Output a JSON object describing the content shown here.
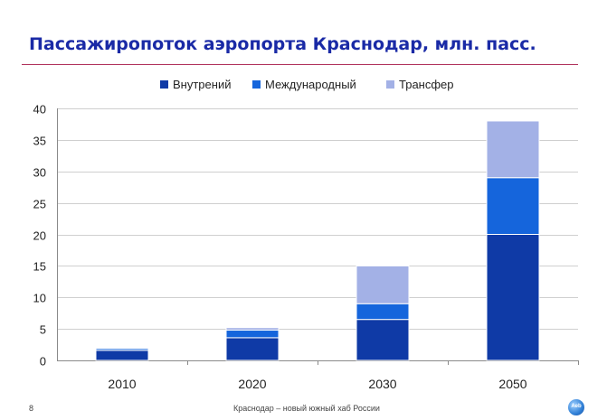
{
  "slide": {
    "title": "Пассажиропоток аэропорта Краснодар, млн. пасс.",
    "page_number": "8",
    "footer": "Краснодар – новый южный хаб России",
    "logo_text": "Aeb"
  },
  "chart_data": {
    "type": "bar",
    "stacked": true,
    "title": "",
    "xlabel": "",
    "ylabel": "",
    "categories": [
      "2010",
      "2020",
      "2030",
      "2050"
    ],
    "series": [
      {
        "name": "Внутрений",
        "values": [
          1.6,
          3.6,
          6.5,
          20
        ],
        "color": "#0f3aa6"
      },
      {
        "name": "Международный",
        "values": [
          0.3,
          1.2,
          2.5,
          9
        ],
        "color": "#1565dc"
      },
      {
        "name": "Трансфер",
        "values": [
          0.1,
          0.4,
          6,
          9
        ],
        "color": "#a3b1e6"
      }
    ],
    "ylim": [
      0,
      40
    ],
    "yticks": [
      0,
      5,
      10,
      15,
      20,
      25,
      30,
      35,
      40
    ],
    "grid": true,
    "legend_position": "top"
  }
}
